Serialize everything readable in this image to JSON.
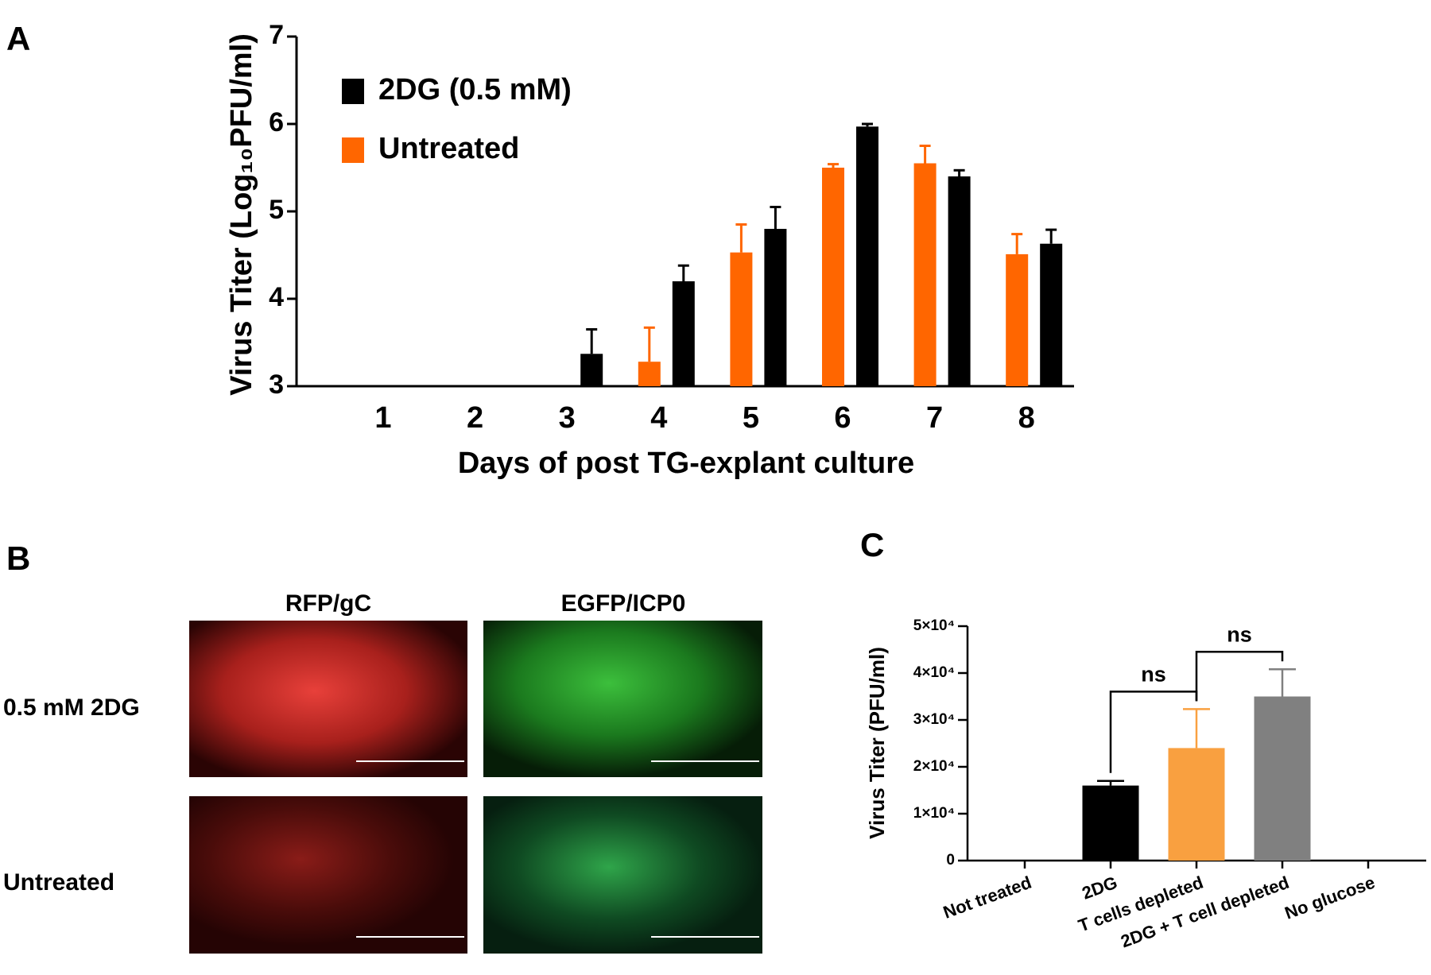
{
  "chart_data": [
    {
      "type": "bar",
      "panel": "A",
      "ylabel": "Virus Titer (Log₁₀PFU/ml)",
      "xlabel": "Days of post TG-explant culture",
      "categories": [
        "1",
        "2",
        "3",
        "4",
        "5",
        "6",
        "7",
        "8"
      ],
      "series": [
        {
          "name": "2DG (0.5 mM)",
          "color": "#000000",
          "values": [
            null,
            null,
            3.37,
            4.2,
            4.8,
            5.97,
            5.4,
            4.63
          ],
          "errors": [
            null,
            null,
            0.28,
            0.18,
            0.25,
            0.03,
            0.07,
            0.16
          ]
        },
        {
          "name": "Untreated",
          "color": "#ff6600",
          "values": [
            null,
            null,
            null,
            3.28,
            4.53,
            5.5,
            5.55,
            4.51
          ],
          "errors": [
            null,
            null,
            null,
            0.39,
            0.32,
            0.04,
            0.2,
            0.23
          ]
        }
      ],
      "ylim": [
        3,
        7
      ],
      "yticks": [
        3,
        4,
        5,
        6,
        7
      ],
      "legend": "upper left"
    },
    {
      "type": "bar",
      "panel": "C",
      "ylabel": "Virus Titer (PFU/ml)",
      "categories": [
        "Not treated",
        "2DG",
        "T cells depleted",
        "2DG + T cell depleted",
        "No glucose"
      ],
      "values": [
        null,
        16000,
        24000,
        35000,
        null
      ],
      "errors": [
        null,
        1000,
        8300,
        5800,
        null
      ],
      "colors": [
        null,
        "#000000",
        "#f9a040",
        "#808080",
        null
      ],
      "ylim": [
        0,
        50000
      ],
      "yticks": [
        0,
        {
          "value": 10000,
          "label": "1×10⁴"
        },
        {
          "value": 20000,
          "label": "2×10⁴"
        },
        {
          "value": 30000,
          "label": "3×10⁴"
        },
        {
          "value": 40000,
          "label": "4×10⁴"
        },
        {
          "value": 50000,
          "label": "5×10⁴"
        }
      ],
      "annotations": [
        {
          "text": "ns",
          "between": [
            1,
            2
          ]
        },
        {
          "text": "ns",
          "between": [
            2,
            3
          ]
        }
      ]
    }
  ],
  "images": {
    "panel": "B",
    "columns": [
      "RFP/gC",
      "EGFP/ICP0"
    ],
    "rows": [
      "0.5 mM 2DG",
      "Untreated"
    ]
  }
}
